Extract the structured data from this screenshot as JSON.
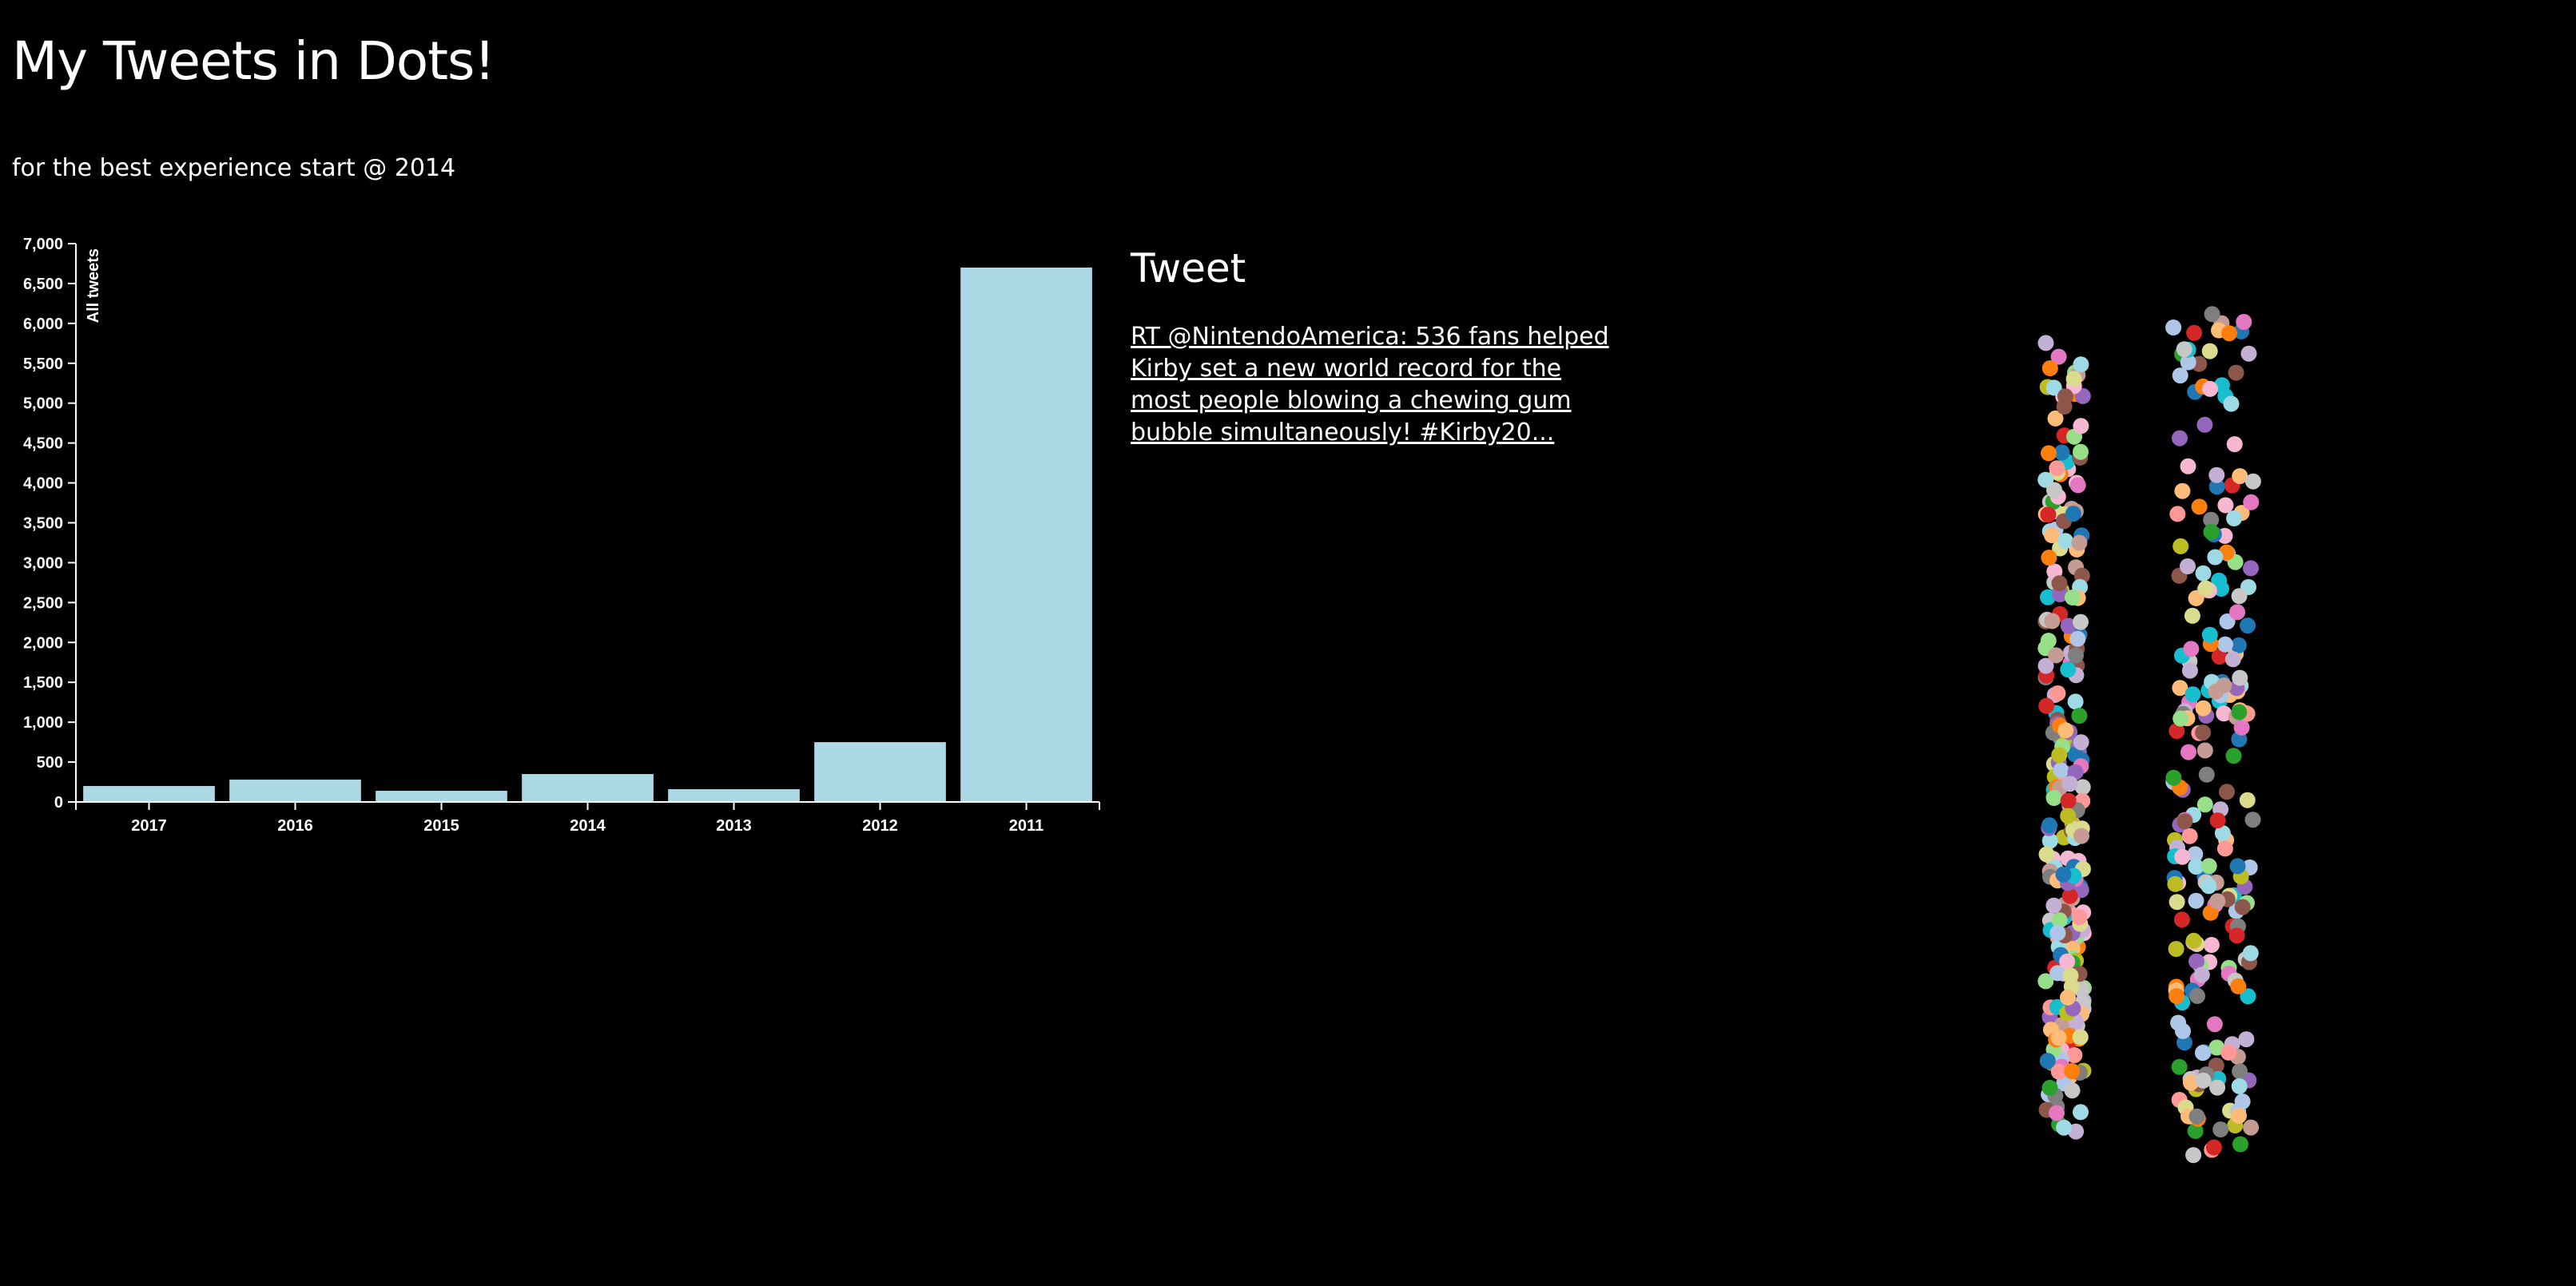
{
  "page": {
    "title": "My Tweets in Dots!",
    "subtitle": "for the best experience start @ 2014"
  },
  "tweet_panel": {
    "heading": "Tweet",
    "text": "RT @NintendoAmerica: 536 fans helped Kirby set a new world record for the most people blowing a chewing gum bubble simultaneously! #Kirby20..."
  },
  "chart_data": {
    "type": "bar",
    "categories": [
      "2017",
      "2016",
      "2015",
      "2014",
      "2013",
      "2012",
      "2011"
    ],
    "values": [
      200,
      280,
      140,
      350,
      160,
      750,
      6700
    ],
    "title": "",
    "xlabel": "",
    "ylabel": "All tweets",
    "ylim": [
      0,
      7000
    ],
    "yticks": [
      0,
      500,
      1000,
      1500,
      2000,
      2500,
      3000,
      3500,
      4000,
      4500,
      5000,
      5500,
      6000,
      6500,
      7000
    ],
    "ytick_labels": [
      "0",
      "500",
      "1,000",
      "1,500",
      "2,000",
      "2,500",
      "3,000",
      "3,500",
      "4,000",
      "4,500",
      "5,000",
      "5,500",
      "6,000",
      "6,500",
      "7,000"
    ],
    "bar_color": "#add8e6",
    "axis_color": "#ffffff",
    "grid": false
  },
  "dot_columns": {
    "palette": [
      "#1f77b4",
      "#aec7e8",
      "#ff7f0e",
      "#ffbb78",
      "#2ca02c",
      "#98df8a",
      "#d62728",
      "#ff9896",
      "#9467bd",
      "#c5b0d5",
      "#8c564b",
      "#c49c94",
      "#e377c2",
      "#f7b6d2",
      "#7f7f7f",
      "#c7c7c7",
      "#bcbd22",
      "#dbdb8d",
      "#17becf",
      "#9edae5"
    ]
  }
}
